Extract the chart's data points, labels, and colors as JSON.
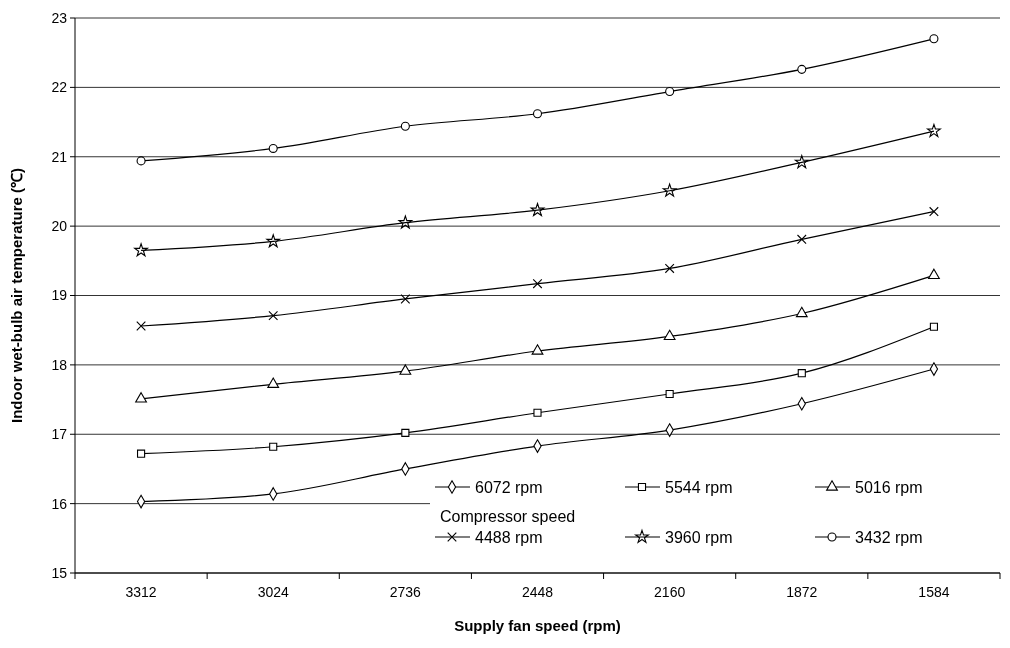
{
  "chart_data": {
    "type": "line",
    "xlabel": "Supply fan speed (rpm)",
    "ylabel": "Indoor wet-bulb air temperature (℃)",
    "legend_title": "Compressor speed",
    "categories": [
      "3312",
      "3024",
      "2736",
      "2448",
      "2160",
      "1872",
      "1584"
    ],
    "series": [
      {
        "name": "6072 rpm",
        "color": "#000000",
        "marker": "diamond",
        "values": [
          16.03,
          16.14,
          16.5,
          16.83,
          17.06,
          17.44,
          17.94
        ]
      },
      {
        "name": "5544 rpm",
        "color": "#000000",
        "marker": "square",
        "values": [
          16.72,
          16.82,
          17.02,
          17.31,
          17.58,
          17.88,
          18.55
        ]
      },
      {
        "name": "5016 rpm",
        "color": "#000000",
        "marker": "triangle",
        "values": [
          17.51,
          17.72,
          17.91,
          18.2,
          18.41,
          18.74,
          19.29
        ]
      },
      {
        "name": "4488 rpm",
        "color": "#000000",
        "marker": "cross",
        "values": [
          18.56,
          18.71,
          18.95,
          19.17,
          19.39,
          19.81,
          20.21
        ]
      },
      {
        "name": "3960 rpm",
        "color": "#000000",
        "marker": "star",
        "values": [
          19.65,
          19.78,
          20.05,
          20.23,
          20.51,
          20.92,
          21.37
        ]
      },
      {
        "name": "3432 rpm",
        "color": "#000000",
        "marker": "circle",
        "values": [
          20.94,
          21.12,
          21.44,
          21.62,
          21.94,
          22.26,
          22.7
        ]
      }
    ],
    "ylim": [
      15,
      23
    ],
    "yticks": [
      15,
      16,
      17,
      18,
      19,
      20,
      21,
      22,
      23
    ],
    "grid": "y",
    "legend": "bottom right",
    "line_style": "solid"
  }
}
